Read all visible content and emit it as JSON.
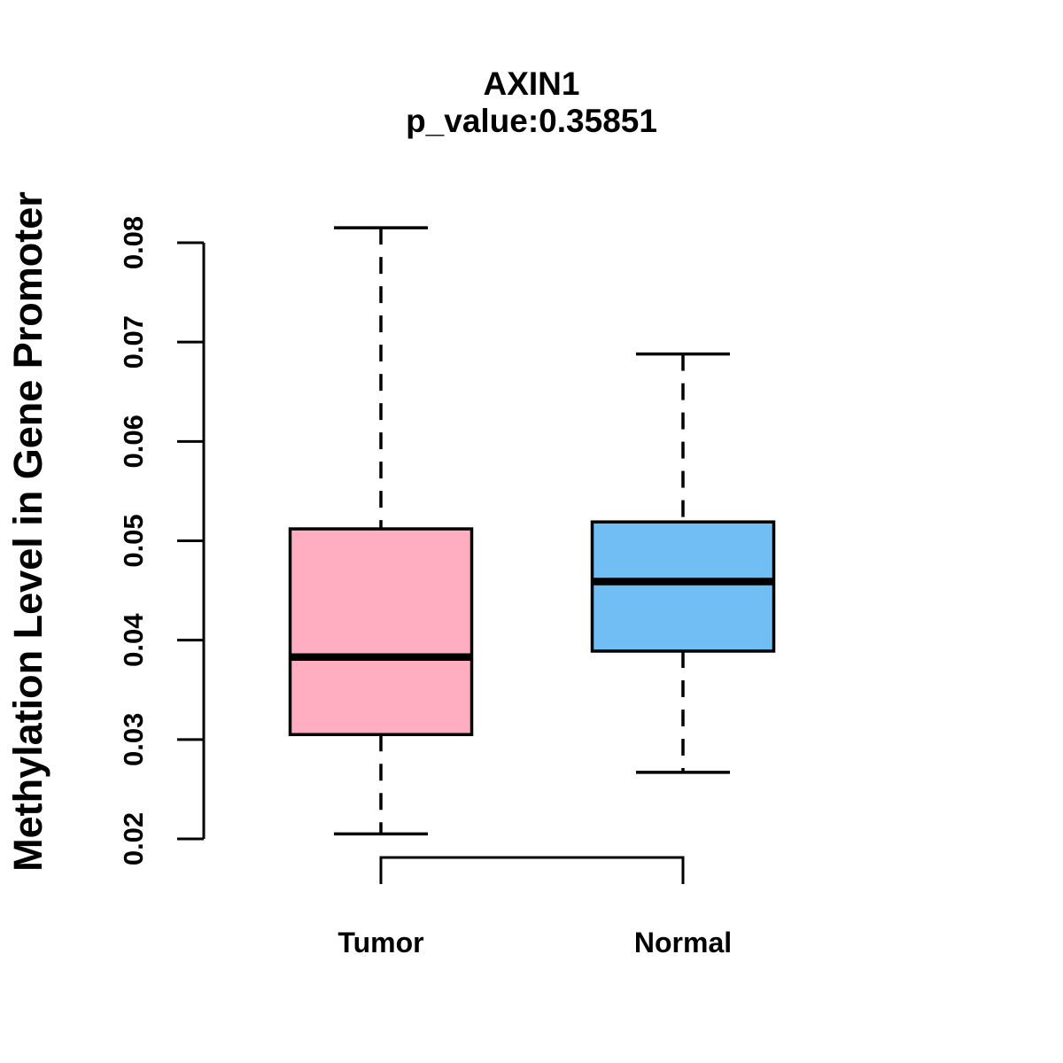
{
  "title": "AXIN1",
  "subtitle": "p_value:0.35851",
  "ylabel": "Methylation Level in Gene Promoter",
  "chart_data": {
    "type": "boxplot",
    "title": "AXIN1",
    "subtitle": "p_value:0.35851",
    "xlabel": "",
    "ylabel": "Methylation Level in Gene Promoter",
    "ylim": [
      0.02,
      0.08
    ],
    "ytick_labels": [
      "0.02",
      "0.03",
      "0.04",
      "0.05",
      "0.06",
      "0.07",
      "0.08"
    ],
    "grid": "off",
    "legend": "none",
    "categories": [
      "Tumor",
      "Normal"
    ],
    "groups": [
      {
        "label": "Tumor",
        "fill_color": "#FFADC0",
        "whisker_low": 0.0205,
        "q1": 0.0305,
        "median": 0.0383,
        "q3": 0.0512,
        "whisker_high": 0.0815
      },
      {
        "label": "Normal",
        "fill_color": "#71BEF5",
        "whisker_low": 0.0267,
        "q1": 0.0389,
        "median": 0.0459,
        "q3": 0.0519,
        "whisker_high": 0.0688
      }
    ],
    "colors": {
      "stroke": "#000000",
      "tumor_fill": "#FFADC0",
      "normal_fill": "#71BEF5"
    }
  }
}
